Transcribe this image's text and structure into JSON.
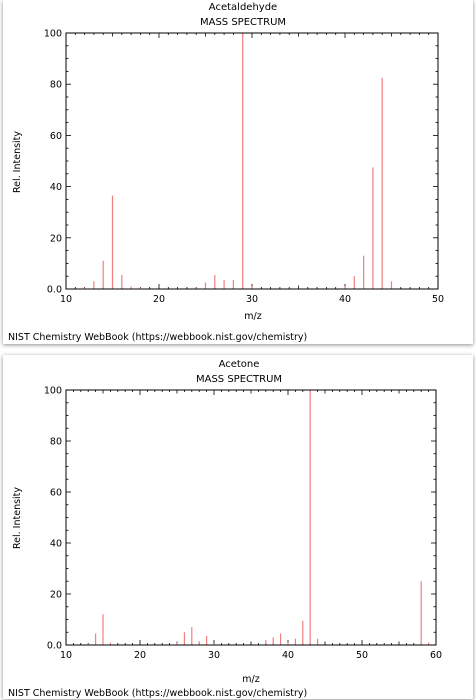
{
  "chart_data": [
    {
      "type": "bar",
      "title": "Acetaldehyde",
      "subtitle": "MASS SPECTRUM",
      "xlabel": "m/z",
      "ylabel": "Rel. Intensity",
      "xlim": [
        10,
        50
      ],
      "ylim": [
        0,
        100
      ],
      "xticks": [
        10,
        20,
        30,
        40,
        50
      ],
      "yticks": [
        0,
        20,
        40,
        60,
        80,
        100
      ],
      "ytick_labels": [
        "0.0",
        "20",
        "40",
        "60",
        "80",
        "100"
      ],
      "grid": false,
      "color": "#f08080",
      "footer": "NIST Chemistry WebBook (https://webbook.nist.gov/chemistry)",
      "peaks": [
        {
          "x": 12,
          "y": 0.5
        },
        {
          "x": 13,
          "y": 3
        },
        {
          "x": 14,
          "y": 11
        },
        {
          "x": 15,
          "y": 36.5
        },
        {
          "x": 16,
          "y": 5.5
        },
        {
          "x": 17,
          "y": 1
        },
        {
          "x": 18,
          "y": 0.5
        },
        {
          "x": 24,
          "y": 0.5
        },
        {
          "x": 25,
          "y": 2.5
        },
        {
          "x": 26,
          "y": 5.5
        },
        {
          "x": 27,
          "y": 3.5
        },
        {
          "x": 28,
          "y": 3.5
        },
        {
          "x": 29,
          "y": 100
        },
        {
          "x": 30,
          "y": 1
        },
        {
          "x": 40,
          "y": 1
        },
        {
          "x": 41,
          "y": 5
        },
        {
          "x": 42,
          "y": 13
        },
        {
          "x": 43,
          "y": 47.5
        },
        {
          "x": 44,
          "y": 82.5
        },
        {
          "x": 45,
          "y": 3
        }
      ]
    },
    {
      "type": "bar",
      "title": "Acetone",
      "subtitle": "MASS SPECTRUM",
      "xlabel": "m/z",
      "ylabel": "Rel. Intensity",
      "xlim": [
        10,
        60
      ],
      "ylim": [
        0,
        100
      ],
      "xticks": [
        10,
        20,
        30,
        40,
        50,
        60
      ],
      "yticks": [
        0,
        20,
        40,
        60,
        80,
        100
      ],
      "ytick_labels": [
        "0.0",
        "20",
        "40",
        "60",
        "80",
        "100"
      ],
      "grid": false,
      "color": "#f08080",
      "footer": "NIST Chemistry WebBook (https://webbook.nist.gov/chemistry)",
      "peaks": [
        {
          "x": 13,
          "y": 0.5
        },
        {
          "x": 14,
          "y": 4.5
        },
        {
          "x": 15,
          "y": 12
        },
        {
          "x": 16,
          "y": 1
        },
        {
          "x": 25,
          "y": 1
        },
        {
          "x": 26,
          "y": 5
        },
        {
          "x": 27,
          "y": 7
        },
        {
          "x": 28,
          "y": 1.5
        },
        {
          "x": 29,
          "y": 3.5
        },
        {
          "x": 30,
          "y": 0.5
        },
        {
          "x": 37,
          "y": 2
        },
        {
          "x": 38,
          "y": 3
        },
        {
          "x": 39,
          "y": 4.5
        },
        {
          "x": 40,
          "y": 1
        },
        {
          "x": 41,
          "y": 2.5
        },
        {
          "x": 42,
          "y": 9.5
        },
        {
          "x": 43,
          "y": 100
        },
        {
          "x": 44,
          "y": 2.5
        },
        {
          "x": 58,
          "y": 25
        },
        {
          "x": 59,
          "y": 1
        }
      ]
    }
  ]
}
